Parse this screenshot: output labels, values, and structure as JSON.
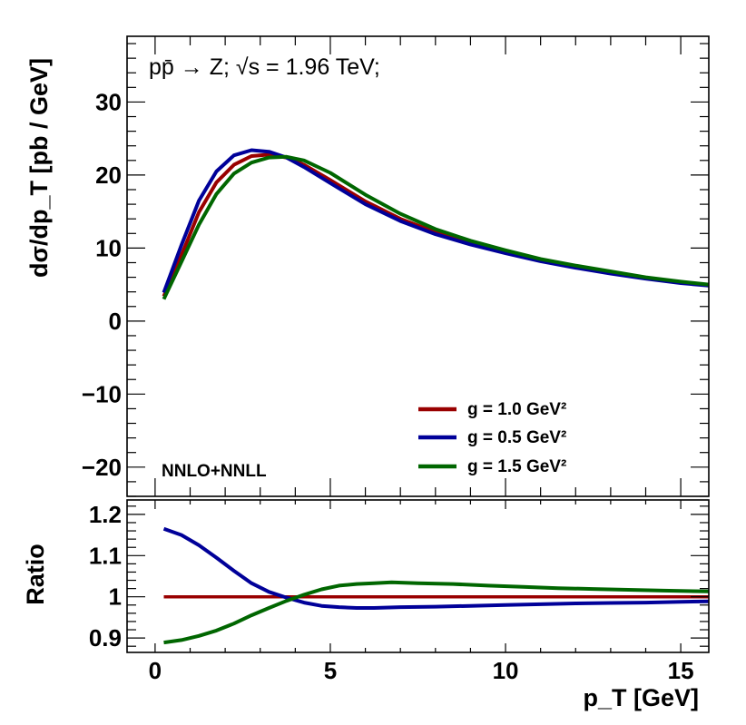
{
  "chart_data": [
    {
      "type": "line",
      "panel": "top",
      "title": "",
      "xlabel": "p_T [GeV]",
      "ylabel": "dσ/dp_T [pb / GeV]",
      "xlim": [
        -0.8,
        15.8
      ],
      "ylim": [
        -24,
        39
      ],
      "yticks": [
        -20,
        -10,
        0,
        10,
        20,
        30
      ],
      "ytick_labels": [
        "−20",
        "−10",
        "0",
        "10",
        "20",
        "30"
      ],
      "process_label": "pp̄ → Z; √s = 1.96 TeV;",
      "order_label": "NNLO+NNLL",
      "legend": [
        {
          "label": "g = 1.0 GeV²",
          "color": "#990000"
        },
        {
          "label": "g = 0.5 GeV²",
          "color": "#000099"
        },
        {
          "label": "g = 1.5 GeV²",
          "color": "#006600"
        }
      ],
      "series": [
        {
          "name": "g = 1.0 GeV²",
          "color": "#990000",
          "x": [
            0.25,
            0.75,
            1.25,
            1.75,
            2.25,
            2.75,
            3.25,
            3.75,
            4.25,
            5,
            6,
            7,
            8,
            9,
            10,
            11,
            12,
            13,
            14,
            15,
            15.8
          ],
          "y": [
            3.4,
            9.0,
            14.9,
            19.0,
            21.4,
            22.6,
            22.8,
            22.4,
            21.4,
            19.3,
            16.4,
            14.0,
            12.2,
            10.7,
            9.4,
            8.3,
            7.4,
            6.6,
            5.9,
            5.3,
            4.9
          ]
        },
        {
          "name": "g = 0.5 GeV²",
          "color": "#000099",
          "x": [
            0.25,
            0.75,
            1.25,
            1.75,
            2.25,
            2.75,
            3.25,
            3.75,
            4.25,
            5,
            6,
            7,
            8,
            9,
            10,
            11,
            12,
            13,
            14,
            15,
            15.8
          ],
          "y": [
            3.9,
            10.4,
            16.5,
            20.5,
            22.7,
            23.4,
            23.2,
            22.4,
            21.1,
            18.9,
            16.0,
            13.7,
            11.9,
            10.5,
            9.3,
            8.2,
            7.3,
            6.5,
            5.8,
            5.2,
            4.85
          ]
        },
        {
          "name": "g = 1.5 GeV²",
          "color": "#006600",
          "x": [
            0.25,
            0.75,
            1.25,
            1.75,
            2.25,
            2.75,
            3.25,
            3.75,
            4.25,
            5,
            6,
            7,
            8,
            9,
            10,
            11,
            12,
            13,
            14,
            15,
            15.8
          ],
          "y": [
            3.0,
            8.1,
            13.2,
            17.4,
            20.2,
            21.7,
            22.4,
            22.5,
            22.0,
            20.3,
            17.3,
            14.7,
            12.6,
            11.0,
            9.7,
            8.5,
            7.6,
            6.8,
            6.0,
            5.4,
            5.0
          ]
        }
      ]
    },
    {
      "type": "line",
      "panel": "bottom",
      "xlabel": "p_T [GeV]",
      "ylabel": "Ratio",
      "xlim": [
        -0.8,
        15.8
      ],
      "ylim": [
        0.865,
        1.235
      ],
      "yticks": [
        0.9,
        1.0,
        1.1,
        1.2
      ],
      "ytick_labels": [
        "0.9",
        "1",
        "1.1",
        "1.2"
      ],
      "xticks": [
        0,
        5,
        10,
        15
      ],
      "xtick_labels": [
        "0",
        "5",
        "10",
        "15"
      ],
      "series": [
        {
          "name": "g = 1.0 GeV²",
          "color": "#990000",
          "x": [
            0.25,
            15.8
          ],
          "y": [
            1.0,
            1.0
          ]
        },
        {
          "name": "g = 0.5 GeV²",
          "color": "#000099",
          "x": [
            0.25,
            0.75,
            1.25,
            1.75,
            2.25,
            2.75,
            3.25,
            3.75,
            4.25,
            4.75,
            5.25,
            5.75,
            6.25,
            7,
            8,
            9,
            10,
            11,
            12,
            13,
            14,
            15,
            15.8
          ],
          "y": [
            1.165,
            1.15,
            1.125,
            1.095,
            1.063,
            1.033,
            1.012,
            0.998,
            0.986,
            0.978,
            0.975,
            0.973,
            0.973,
            0.975,
            0.976,
            0.978,
            0.98,
            0.982,
            0.984,
            0.985,
            0.986,
            0.988,
            0.989
          ]
        },
        {
          "name": "g = 1.5 GeV²",
          "color": "#006600",
          "x": [
            0.25,
            0.75,
            1.25,
            1.75,
            2.25,
            2.75,
            3.25,
            3.75,
            4.25,
            4.75,
            5.25,
            5.75,
            6.25,
            6.75,
            7.5,
            8.5,
            9.5,
            10.5,
            11.5,
            12.5,
            13.5,
            14.5,
            15.8
          ],
          "y": [
            0.889,
            0.895,
            0.905,
            0.918,
            0.935,
            0.955,
            0.973,
            0.99,
            1.005,
            1.018,
            1.027,
            1.031,
            1.033,
            1.035,
            1.033,
            1.031,
            1.027,
            1.024,
            1.021,
            1.019,
            1.017,
            1.015,
            1.013
          ]
        }
      ]
    }
  ]
}
